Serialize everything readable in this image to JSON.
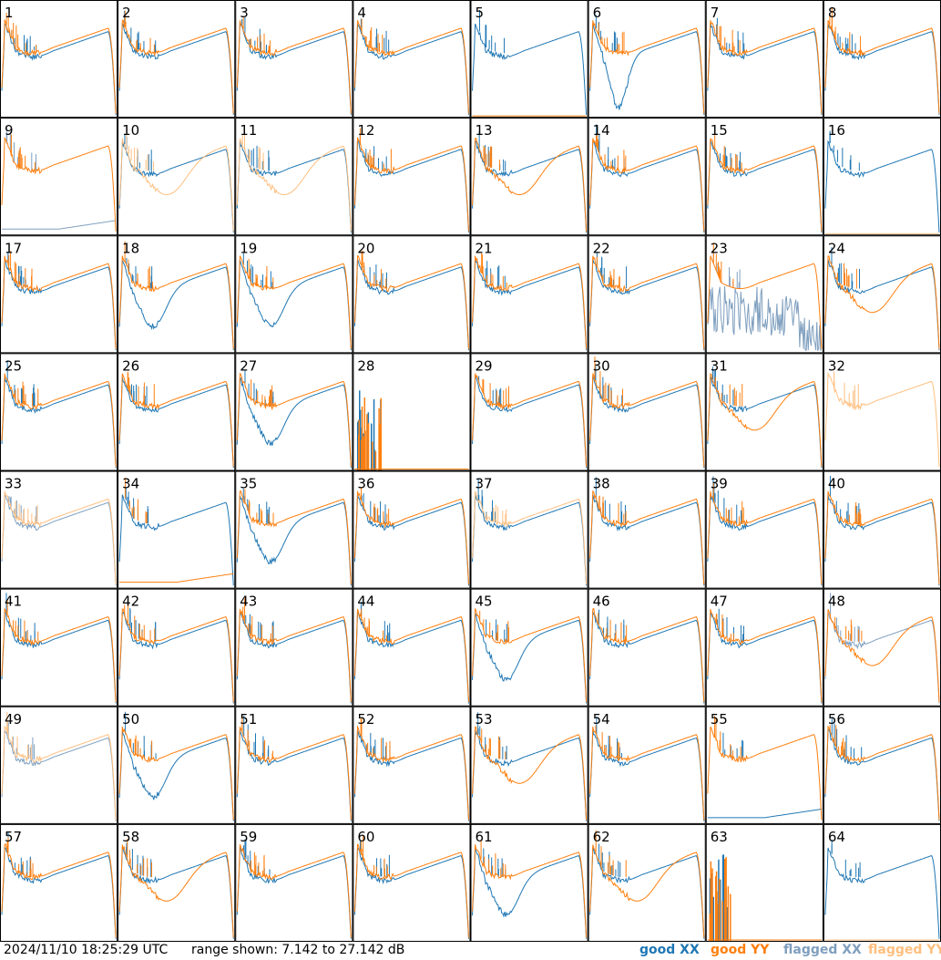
{
  "footer": {
    "timestamp": "2024/11/10 18:25:29 UTC",
    "range_text": "range shown: 7.142 to 27.142 dB"
  },
  "chart_data": {
    "type": "line",
    "title": "",
    "range_db": [
      7.142,
      27.142
    ],
    "panel_grid": {
      "rows": 8,
      "cols": 8
    },
    "legend": [
      {
        "label": "good XX",
        "color": "#1f77b4"
      },
      {
        "label": "good YY",
        "color": "#ff7f0e"
      },
      {
        "label": "flagged XX",
        "color": "#7f9fbf"
      },
      {
        "label": "flagged YY",
        "color": "#ffbf7f"
      }
    ],
    "panels": [
      {
        "label": "1",
        "xx": "good",
        "yy": "good",
        "profile": "edge"
      },
      {
        "label": "2",
        "xx": "good",
        "yy": "good",
        "profile": "normal"
      },
      {
        "label": "3",
        "xx": "good",
        "yy": "good",
        "profile": "normal"
      },
      {
        "label": "4",
        "xx": "good",
        "yy": "good",
        "profile": "normal"
      },
      {
        "label": "5",
        "xx": "good",
        "yy": "good",
        "profile": "xx_only"
      },
      {
        "label": "6",
        "xx": "good",
        "yy": "good",
        "profile": "dip"
      },
      {
        "label": "7",
        "xx": "good",
        "yy": "good",
        "profile": "normal"
      },
      {
        "label": "8",
        "xx": "good",
        "yy": "good",
        "profile": "normal"
      },
      {
        "label": "9",
        "xx": "flagged",
        "yy": "good",
        "profile": "xx_low"
      },
      {
        "label": "10",
        "xx": "good",
        "yy": "flagged",
        "profile": "yy_dip"
      },
      {
        "label": "11",
        "xx": "good",
        "yy": "flagged",
        "profile": "yy_dip"
      },
      {
        "label": "12",
        "xx": "good",
        "yy": "good",
        "profile": "normal"
      },
      {
        "label": "13",
        "xx": "good",
        "yy": "good",
        "profile": "yy_dip"
      },
      {
        "label": "14",
        "xx": "good",
        "yy": "good",
        "profile": "normal"
      },
      {
        "label": "15",
        "xx": "good",
        "yy": "good",
        "profile": "normal"
      },
      {
        "label": "16",
        "xx": "good",
        "yy": "flagged",
        "profile": "xx_only"
      },
      {
        "label": "17",
        "xx": "good",
        "yy": "good",
        "profile": "normal"
      },
      {
        "label": "18",
        "xx": "good",
        "yy": "good",
        "profile": "xx_dip"
      },
      {
        "label": "19",
        "xx": "good",
        "yy": "good",
        "profile": "xx_dip"
      },
      {
        "label": "20",
        "xx": "good",
        "yy": "good",
        "profile": "normal"
      },
      {
        "label": "21",
        "xx": "good",
        "yy": "good",
        "profile": "normal"
      },
      {
        "label": "22",
        "xx": "good",
        "yy": "good",
        "profile": "normal"
      },
      {
        "label": "23",
        "xx": "flagged",
        "yy": "good",
        "profile": "xx_noisy"
      },
      {
        "label": "24",
        "xx": "good",
        "yy": "good",
        "profile": "yy_dip"
      },
      {
        "label": "25",
        "xx": "good",
        "yy": "good",
        "profile": "normal"
      },
      {
        "label": "26",
        "xx": "good",
        "yy": "good",
        "profile": "normal"
      },
      {
        "label": "27",
        "xx": "good",
        "yy": "good",
        "profile": "xx_dip"
      },
      {
        "label": "28",
        "xx": "good",
        "yy": "good",
        "profile": "dead"
      },
      {
        "label": "29",
        "xx": "good",
        "yy": "good",
        "profile": "normal"
      },
      {
        "label": "30",
        "xx": "good",
        "yy": "good",
        "profile": "normal"
      },
      {
        "label": "31",
        "xx": "good",
        "yy": "good",
        "profile": "yy_dip"
      },
      {
        "label": "32",
        "xx": "flagged",
        "yy": "flagged",
        "profile": "yy_only"
      },
      {
        "label": "33",
        "xx": "flagged",
        "yy": "flagged",
        "profile": "normal"
      },
      {
        "label": "34",
        "xx": "good",
        "yy": "good",
        "profile": "yy_low"
      },
      {
        "label": "35",
        "xx": "good",
        "yy": "good",
        "profile": "xx_dip"
      },
      {
        "label": "36",
        "xx": "good",
        "yy": "good",
        "profile": "normal"
      },
      {
        "label": "37",
        "xx": "good",
        "yy": "flagged",
        "profile": "normal"
      },
      {
        "label": "38",
        "xx": "good",
        "yy": "good",
        "profile": "normal"
      },
      {
        "label": "39",
        "xx": "good",
        "yy": "good",
        "profile": "normal"
      },
      {
        "label": "40",
        "xx": "good",
        "yy": "good",
        "profile": "normal"
      },
      {
        "label": "41",
        "xx": "good",
        "yy": "good",
        "profile": "normal"
      },
      {
        "label": "42",
        "xx": "good",
        "yy": "good",
        "profile": "normal"
      },
      {
        "label": "43",
        "xx": "good",
        "yy": "good",
        "profile": "normal"
      },
      {
        "label": "44",
        "xx": "good",
        "yy": "good",
        "profile": "normal"
      },
      {
        "label": "45",
        "xx": "good",
        "yy": "good",
        "profile": "xx_dip"
      },
      {
        "label": "46",
        "xx": "good",
        "yy": "good",
        "profile": "normal"
      },
      {
        "label": "47",
        "xx": "good",
        "yy": "good",
        "profile": "normal"
      },
      {
        "label": "48",
        "xx": "flagged",
        "yy": "good",
        "profile": "yy_dip"
      },
      {
        "label": "49",
        "xx": "flagged",
        "yy": "flagged",
        "profile": "normal"
      },
      {
        "label": "50",
        "xx": "good",
        "yy": "good",
        "profile": "xx_dip"
      },
      {
        "label": "51",
        "xx": "good",
        "yy": "good",
        "profile": "normal"
      },
      {
        "label": "52",
        "xx": "good",
        "yy": "good",
        "profile": "normal"
      },
      {
        "label": "53",
        "xx": "good",
        "yy": "good",
        "profile": "yy_dip"
      },
      {
        "label": "54",
        "xx": "good",
        "yy": "good",
        "profile": "normal"
      },
      {
        "label": "55",
        "xx": "good",
        "yy": "good",
        "profile": "xx_low"
      },
      {
        "label": "56",
        "xx": "good",
        "yy": "good",
        "profile": "normal"
      },
      {
        "label": "57",
        "xx": "good",
        "yy": "good",
        "profile": "normal"
      },
      {
        "label": "58",
        "xx": "good",
        "yy": "good",
        "profile": "yy_dip"
      },
      {
        "label": "59",
        "xx": "good",
        "yy": "good",
        "profile": "normal"
      },
      {
        "label": "60",
        "xx": "good",
        "yy": "good",
        "profile": "normal"
      },
      {
        "label": "61",
        "xx": "good",
        "yy": "good",
        "profile": "xx_dip"
      },
      {
        "label": "62",
        "xx": "good",
        "yy": "good",
        "profile": "yy_dip"
      },
      {
        "label": "63",
        "xx": "good",
        "yy": "good",
        "profile": "dead"
      },
      {
        "label": "64",
        "xx": "good",
        "yy": "flagged",
        "profile": "xx_only"
      }
    ]
  }
}
